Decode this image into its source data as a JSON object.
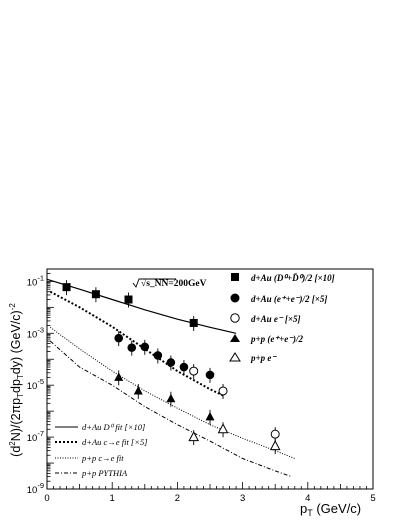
{
  "chart_data": {
    "type": "scatter",
    "xlabel": "p_T (GeV/c)",
    "ylabel": "(d²N)/(2πp_Tdp_Tdy) (GeV/c)⁻²",
    "annotation": "√s_NN=200GeV",
    "xlim": [
      0,
      5
    ],
    "ylim": [
      1e-09,
      0.3
    ],
    "yscale": "log",
    "x_ticks": [
      "0",
      "1",
      "2",
      "3",
      "4",
      "5"
    ],
    "y_ticks": [
      "10^-9",
      "10^-7",
      "10^-5",
      "10^-3",
      "10^-1"
    ],
    "marker_series": [
      {
        "name": "d+Au (D⁰+D̄⁰)/2 [×10]",
        "marker": "square-filled",
        "x": [
          0.3,
          0.75,
          1.25,
          2.25
        ],
        "y": [
          0.06,
          0.032,
          0.02,
          0.0025
        ]
      },
      {
        "name": "d+Au (e⁺+e⁻)/2 [×5]",
        "marker": "circle-filled",
        "x": [
          1.1,
          1.3,
          1.5,
          1.7,
          1.9,
          2.1,
          2.5
        ],
        "y": [
          0.00065,
          0.00028,
          0.0003,
          0.00014,
          7.5e-05,
          5e-05,
          2.5e-05
        ]
      },
      {
        "name": "d+Au e⁻ [×5]",
        "marker": "circle-open",
        "x": [
          2.25,
          2.7,
          3.5
        ],
        "y": [
          3.5e-05,
          6e-06,
          1.3e-07
        ]
      },
      {
        "name": "p+p (e⁺+e⁻)/2",
        "marker": "triangle-filled",
        "x": [
          1.1,
          1.4,
          1.9,
          2.5
        ],
        "y": [
          2e-05,
          6e-06,
          3e-06,
          6e-07
        ]
      },
      {
        "name": "p+p e⁻",
        "marker": "triangle-open",
        "x": [
          2.25,
          2.7,
          3.5
        ],
        "y": [
          1e-07,
          2e-07,
          4.5e-08
        ]
      }
    ],
    "line_series": [
      {
        "name": "d+Au D⁰ fit [×10]",
        "style": "solid",
        "x": [
          0,
          0.5,
          1,
          1.5,
          2,
          2.5,
          2.9
        ],
        "y": [
          0.12,
          0.05,
          0.02,
          0.008,
          0.0035,
          0.0017,
          0.001
        ]
      },
      {
        "name": "d+Au c→e fit [×5]",
        "style": "dashed-thick",
        "x": [
          0.05,
          0.5,
          1,
          1.5,
          2,
          2.5,
          2.7
        ],
        "y": [
          0.04,
          0.01,
          0.0018,
          0.00025,
          3.5e-05,
          7e-06,
          4e-06
        ]
      },
      {
        "name": "p+p c→e fit",
        "style": "dotted",
        "x": [
          0.05,
          0.5,
          1,
          1.5,
          2,
          2.5,
          3,
          3.5,
          3.8
        ],
        "y": [
          0.0017,
          0.00025,
          3.5e-05,
          6e-06,
          1.3e-06,
          3e-07,
          9e-08,
          3e-08,
          1.5e-08
        ]
      },
      {
        "name": "p+p PYTHIA",
        "style": "dash-dot",
        "x": [
          0.05,
          0.5,
          1,
          1.5,
          2,
          2.5,
          3,
          3.5,
          3.75
        ],
        "y": [
          0.0005,
          5e-05,
          1e-05,
          1.5e-06,
          3e-07,
          7e-08,
          1.5e-08,
          5e-09,
          3e-09
        ]
      }
    ]
  }
}
